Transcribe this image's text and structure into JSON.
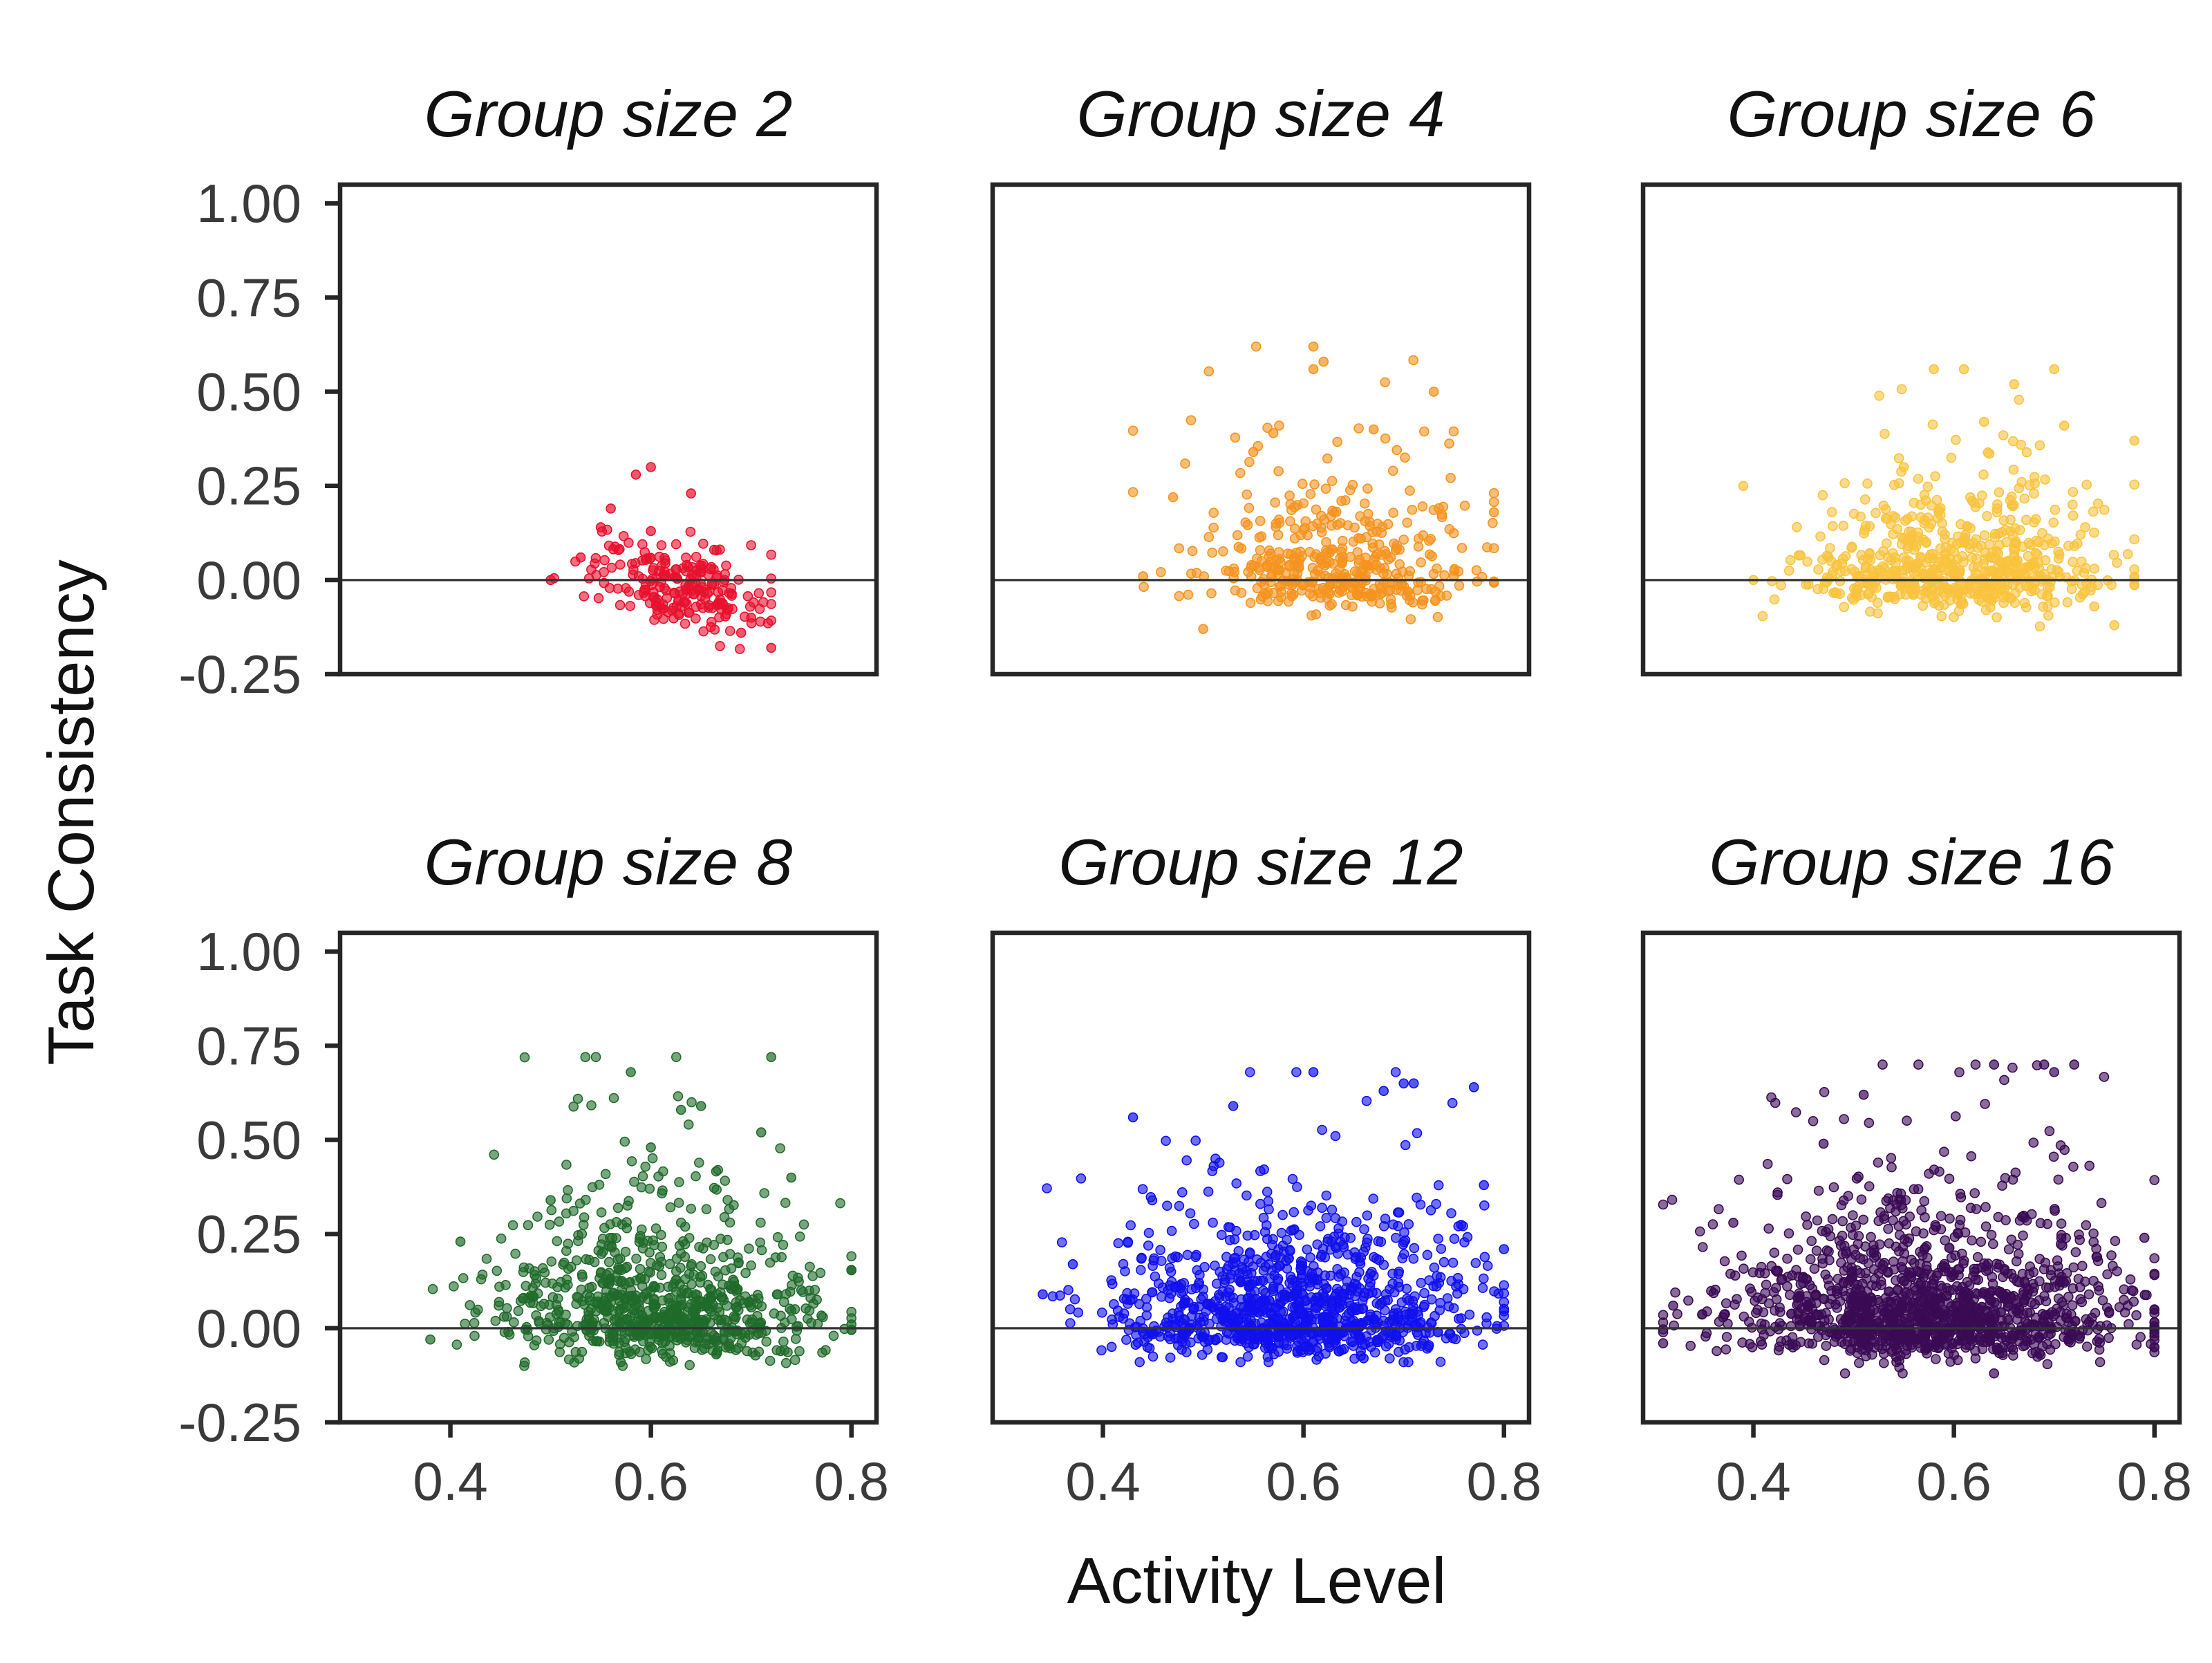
{
  "figure": {
    "xlabel": "Activity Level",
    "ylabel": "Task Consistency"
  },
  "chart_data": [
    {
      "type": "scatter",
      "title": "Group size 2",
      "color": "#e8112d",
      "xlim": [
        0.29,
        0.825
      ],
      "ylim": [
        -0.25,
        1.05
      ],
      "xticks": [
        0.4,
        0.6,
        0.8
      ],
      "xtick_labels": [
        "0.4",
        "0.6",
        "0.8"
      ],
      "yticks": [
        -0.25,
        0.0,
        0.25,
        0.5,
        0.75,
        1.0
      ],
      "ytick_labels": [
        "-0.25",
        "0.00",
        "0.25",
        "0.50",
        "0.75",
        "1.00"
      ],
      "show_x_ticks": false,
      "show_y_ticks": true,
      "reference_line_y": 0,
      "n_points": 220,
      "x_range": [
        0.49,
        0.72
      ],
      "y_range": [
        -0.19,
        0.3
      ],
      "points": [
        [
          0.6,
          0.3
        ],
        [
          0.585,
          0.28
        ],
        [
          0.64,
          0.23
        ],
        [
          0.56,
          0.19
        ],
        [
          0.55,
          0.14
        ],
        [
          0.6,
          0.13
        ],
        [
          0.5,
          0.0
        ],
        [
          0.53,
          0.06
        ],
        [
          0.7,
          -0.1
        ],
        [
          0.72,
          -0.18
        ],
        [
          0.69,
          -0.14
        ],
        [
          0.65,
          0.02
        ]
      ]
    },
    {
      "type": "scatter",
      "title": "Group size 4",
      "color": "#f5931e",
      "xlim": [
        0.29,
        0.825
      ],
      "ylim": [
        -0.25,
        1.05
      ],
      "xticks": [
        0.4,
        0.6,
        0.8
      ],
      "xtick_labels": [
        "0.4",
        "0.6",
        "0.8"
      ],
      "yticks": [
        -0.25,
        0.0,
        0.25,
        0.5,
        0.75,
        1.0
      ],
      "ytick_labels": [
        "-0.25",
        "0.00",
        "0.25",
        "0.50",
        "0.75",
        "1.00"
      ],
      "show_x_ticks": false,
      "show_y_ticks": false,
      "reference_line_y": 0,
      "n_points": 420,
      "x_range": [
        0.43,
        0.79
      ],
      "y_range": [
        -0.13,
        0.62
      ],
      "points": [
        [
          0.61,
          0.62
        ],
        [
          0.62,
          0.58
        ],
        [
          0.61,
          0.56
        ],
        [
          0.73,
          0.5
        ],
        [
          0.57,
          0.39
        ],
        [
          0.67,
          0.4
        ],
        [
          0.55,
          0.34
        ],
        [
          0.44,
          0.01
        ],
        [
          0.79,
          0.18
        ],
        [
          0.75,
          0.01
        ],
        [
          0.47,
          0.22
        ],
        [
          0.5,
          -0.13
        ]
      ]
    },
    {
      "type": "scatter",
      "title": "Group size 6",
      "color": "#f9c33e",
      "xlim": [
        0.29,
        0.825
      ],
      "ylim": [
        -0.25,
        1.05
      ],
      "xticks": [
        0.4,
        0.6,
        0.8
      ],
      "xtick_labels": [
        "0.4",
        "0.6",
        "0.8"
      ],
      "yticks": [
        -0.25,
        0.0,
        0.25,
        0.5,
        0.75,
        1.0
      ],
      "ytick_labels": [
        "-0.25",
        "0.00",
        "0.25",
        "0.50",
        "0.75",
        "1.00"
      ],
      "show_x_ticks": false,
      "show_y_ticks": false,
      "reference_line_y": 0,
      "n_points": 620,
      "x_range": [
        0.39,
        0.78
      ],
      "y_range": [
        -0.13,
        0.56
      ],
      "points": [
        [
          0.58,
          0.56
        ],
        [
          0.61,
          0.56
        ],
        [
          0.7,
          0.56
        ],
        [
          0.66,
          0.52
        ],
        [
          0.78,
          0.37
        ],
        [
          0.39,
          0.25
        ],
        [
          0.4,
          0.0
        ],
        [
          0.76,
          -0.12
        ],
        [
          0.74,
          -0.07
        ],
        [
          0.63,
          0.42
        ],
        [
          0.71,
          0.41
        ],
        [
          0.55,
          0.3
        ]
      ]
    },
    {
      "type": "scatter",
      "title": "Group size 8",
      "color": "#1f6b2a",
      "xlim": [
        0.29,
        0.825
      ],
      "ylim": [
        -0.25,
        1.05
      ],
      "xticks": [
        0.4,
        0.6,
        0.8
      ],
      "xtick_labels": [
        "0.4",
        "0.6",
        "0.8"
      ],
      "yticks": [
        -0.25,
        0.0,
        0.25,
        0.5,
        0.75,
        1.0
      ],
      "ytick_labels": [
        "-0.25",
        "0.00",
        "0.25",
        "0.50",
        "0.75",
        "1.00"
      ],
      "show_x_ticks": true,
      "show_y_ticks": true,
      "reference_line_y": 0,
      "n_points": 820,
      "x_range": [
        0.38,
        0.8
      ],
      "y_range": [
        -0.1,
        0.72
      ],
      "points": [
        [
          0.72,
          0.72
        ],
        [
          0.58,
          0.68
        ],
        [
          0.65,
          0.59
        ],
        [
          0.63,
          0.58
        ],
        [
          0.71,
          0.52
        ],
        [
          0.74,
          0.4
        ],
        [
          0.5,
          0.34
        ],
        [
          0.8,
          0.01
        ],
        [
          0.38,
          -0.03
        ],
        [
          0.41,
          0.23
        ],
        [
          0.6,
          0.48
        ],
        [
          0.57,
          -0.09
        ]
      ]
    },
    {
      "type": "scatter",
      "title": "Group size 12",
      "color": "#1010ee",
      "xlim": [
        0.29,
        0.825
      ],
      "ylim": [
        -0.25,
        1.05
      ],
      "xticks": [
        0.4,
        0.6,
        0.8
      ],
      "xtick_labels": [
        "0.4",
        "0.6",
        "0.8"
      ],
      "yticks": [
        -0.25,
        0.0,
        0.25,
        0.5,
        0.75,
        1.0
      ],
      "ytick_labels": [
        "-0.25",
        "0.00",
        "0.25",
        "0.50",
        "0.75",
        "1.00"
      ],
      "show_x_ticks": true,
      "show_y_ticks": false,
      "reference_line_y": 0,
      "n_points": 1050,
      "x_range": [
        0.34,
        0.8
      ],
      "y_range": [
        -0.09,
        0.68
      ],
      "points": [
        [
          0.61,
          0.68
        ],
        [
          0.71,
          0.65
        ],
        [
          0.7,
          0.65
        ],
        [
          0.77,
          0.64
        ],
        [
          0.68,
          0.63
        ],
        [
          0.43,
          0.56
        ],
        [
          0.34,
          0.09
        ],
        [
          0.8,
          0.21
        ],
        [
          0.78,
          0.38
        ],
        [
          0.53,
          0.59
        ],
        [
          0.37,
          0.17
        ],
        [
          0.66,
          -0.08
        ]
      ]
    },
    {
      "type": "scatter",
      "title": "Group size 16",
      "color": "#3a0a55",
      "xlim": [
        0.29,
        0.825
      ],
      "ylim": [
        -0.25,
        1.05
      ],
      "xticks": [
        0.4,
        0.6,
        0.8
      ],
      "xtick_labels": [
        "0.4",
        "0.6",
        "0.8"
      ],
      "yticks": [
        -0.25,
        0.0,
        0.25,
        0.5,
        0.75,
        1.0
      ],
      "ytick_labels": [
        "-0.25",
        "0.00",
        "0.25",
        "0.50",
        "0.75",
        "1.00"
      ],
      "show_x_ticks": true,
      "show_y_ticks": false,
      "reference_line_y": 0,
      "n_points": 1350,
      "x_range": [
        0.31,
        0.8
      ],
      "y_range": [
        -0.12,
        0.7
      ],
      "points": [
        [
          0.64,
          0.7
        ],
        [
          0.69,
          0.7
        ],
        [
          0.7,
          0.68
        ],
        [
          0.72,
          0.7
        ],
        [
          0.51,
          0.62
        ],
        [
          0.47,
          0.49
        ],
        [
          0.31,
          -0.04
        ],
        [
          0.32,
          0.06
        ],
        [
          0.8,
          0.05
        ],
        [
          0.79,
          0.24
        ],
        [
          0.64,
          -0.12
        ],
        [
          0.38,
          0.28
        ]
      ]
    }
  ]
}
